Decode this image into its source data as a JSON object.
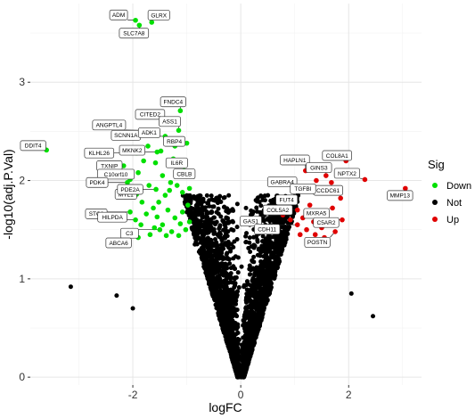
{
  "chart_data": {
    "type": "scatter",
    "xlabel": "logFC",
    "ylabel": "-log10(adj.P.Val)",
    "xlim": [
      -3.9,
      3.35
    ],
    "ylim": [
      -0.08,
      3.8
    ],
    "x_ticks": [
      -2,
      0,
      2
    ],
    "x_tick_labels": [
      "-2",
      "0",
      "2"
    ],
    "y_ticks": [
      0,
      1,
      2,
      3
    ],
    "y_tick_labels": [
      "0",
      "1",
      "2",
      "3"
    ],
    "grid": true,
    "legend": {
      "title": "Sig",
      "position": "right",
      "entries": [
        {
          "label": "Down",
          "color": "#00e000"
        },
        {
          "label": "Not",
          "color": "#000000"
        },
        {
          "label": "Up",
          "color": "#e00000"
        }
      ]
    },
    "series": [
      {
        "name": "Down",
        "color": "#00e000",
        "points": [
          {
            "x": -1.95,
            "y": 3.63,
            "label": "ADM"
          },
          {
            "x": -1.65,
            "y": 3.61,
            "label": "GLRX"
          },
          {
            "x": -1.88,
            "y": 3.58,
            "label": "SLC7A8"
          },
          {
            "x": -1.35,
            "y": 2.6,
            "label": "CITED2"
          },
          {
            "x": -1.12,
            "y": 2.71,
            "label": "FNDC4"
          },
          {
            "x": -1.73,
            "y": 2.51,
            "label": "ANGPTL4"
          },
          {
            "x": -1.15,
            "y": 2.51,
            "label": "ASS1"
          },
          {
            "x": -1.55,
            "y": 2.46,
            "label": "SCNN1A"
          },
          {
            "x": -1.4,
            "y": 2.45,
            "label": "ADK1"
          },
          {
            "x": -1.0,
            "y": 2.38,
            "label": "RBP4"
          },
          {
            "x": -1.93,
            "y": 2.28,
            "label": "KLHL26"
          },
          {
            "x": -1.55,
            "y": 2.29,
            "label": "MKNK2"
          },
          {
            "x": -1.12,
            "y": 2.18,
            "label": "IL6R"
          },
          {
            "x": -3.6,
            "y": 2.31,
            "label": "DDIT4"
          },
          {
            "x": -2.17,
            "y": 2.15,
            "label": "TXNIP"
          },
          {
            "x": -2.05,
            "y": 2.01,
            "label": "C10orf10"
          },
          {
            "x": -0.98,
            "y": 2.05,
            "label": "CBLB"
          },
          {
            "x": -2.1,
            "y": 1.98,
            "label": "PDK4"
          },
          {
            "x": -1.93,
            "y": 1.86,
            "label": "MYL1"
          },
          {
            "x": -1.57,
            "y": 1.91,
            "label": "PDE2A"
          },
          {
            "x": -2.05,
            "y": 1.68,
            "label": "STC2"
          },
          {
            "x": -1.95,
            "y": 1.6,
            "label": "HILPDA"
          },
          {
            "x": -1.5,
            "y": 1.5,
            "label": "C3"
          },
          {
            "x": -1.9,
            "y": 1.42,
            "label": "ABCA6"
          },
          {
            "x": -1.72,
            "y": 2.35
          },
          {
            "x": -1.58,
            "y": 2.18
          },
          {
            "x": -1.45,
            "y": 2.05
          },
          {
            "x": -1.3,
            "y": 1.98
          },
          {
            "x": -1.25,
            "y": 2.22
          },
          {
            "x": -1.18,
            "y": 1.95
          },
          {
            "x": -1.08,
            "y": 1.88
          },
          {
            "x": -0.98,
            "y": 1.75
          },
          {
            "x": -0.95,
            "y": 1.92
          },
          {
            "x": -1.4,
            "y": 1.85
          },
          {
            "x": -1.52,
            "y": 1.78
          },
          {
            "x": -1.62,
            "y": 1.72
          },
          {
            "x": -1.75,
            "y": 1.66
          },
          {
            "x": -1.83,
            "y": 1.78
          },
          {
            "x": -1.7,
            "y": 1.95
          },
          {
            "x": -1.35,
            "y": 1.7
          },
          {
            "x": -1.22,
            "y": 1.62
          },
          {
            "x": -1.12,
            "y": 1.56
          },
          {
            "x": -1.02,
            "y": 1.5
          },
          {
            "x": -0.95,
            "y": 1.58
          },
          {
            "x": -1.28,
            "y": 1.48
          },
          {
            "x": -1.45,
            "y": 1.55
          },
          {
            "x": -1.6,
            "y": 1.52
          },
          {
            "x": -1.85,
            "y": 1.55
          },
          {
            "x": -1.68,
            "y": 1.45
          },
          {
            "x": -1.38,
            "y": 1.44
          },
          {
            "x": -1.15,
            "y": 1.44
          },
          {
            "x": -2.02,
            "y": 1.88
          },
          {
            "x": -1.9,
            "y": 2.08
          },
          {
            "x": -1.8,
            "y": 2.2
          },
          {
            "x": -1.48,
            "y": 2.3
          },
          {
            "x": -1.22,
            "y": 2.35
          },
          {
            "x": -1.05,
            "y": 2.1
          },
          {
            "x": -1.32,
            "y": 1.9
          },
          {
            "x": -1.55,
            "y": 1.63
          },
          {
            "x": -1.08,
            "y": 1.68
          }
        ]
      },
      {
        "name": "Up",
        "color": "#e00000",
        "points": [
          {
            "x": 1.95,
            "y": 2.2,
            "label": "COL8A1"
          },
          {
            "x": 2.3,
            "y": 2.01,
            "label": "NPTX2"
          },
          {
            "x": 3.05,
            "y": 1.92,
            "label": "MMP13"
          },
          {
            "x": 1.2,
            "y": 2.1,
            "label": "HAPLN1"
          },
          {
            "x": 1.58,
            "y": 2.05,
            "label": "GINS3"
          },
          {
            "x": 1.75,
            "y": 1.9,
            "label": "CCDC61"
          },
          {
            "x": 1.0,
            "y": 1.95,
            "label": "GABRA4"
          },
          {
            "x": 1.45,
            "y": 1.88,
            "label": "TGFBI"
          },
          {
            "x": 0.95,
            "y": 1.83,
            "label": "FUT4"
          },
          {
            "x": 1.7,
            "y": 1.72,
            "label": "MXRA5"
          },
          {
            "x": 1.05,
            "y": 1.7,
            "label": "COL5A2"
          },
          {
            "x": 0.78,
            "y": 1.65,
            "label": "GAS1"
          },
          {
            "x": 1.88,
            "y": 1.6,
            "label": "C5AR2"
          },
          {
            "x": 1.05,
            "y": 1.55,
            "label": "CDH11"
          },
          {
            "x": 1.75,
            "y": 1.48,
            "label": "POSTN"
          },
          {
            "x": 1.15,
            "y": 1.62
          },
          {
            "x": 1.28,
            "y": 1.75
          },
          {
            "x": 1.35,
            "y": 1.58
          },
          {
            "x": 1.22,
            "y": 1.5
          },
          {
            "x": 1.38,
            "y": 1.45
          },
          {
            "x": 1.5,
            "y": 1.52
          },
          {
            "x": 1.62,
            "y": 1.6
          },
          {
            "x": 1.55,
            "y": 1.42
          },
          {
            "x": 1.1,
            "y": 1.45
          },
          {
            "x": 1.3,
            "y": 1.9
          },
          {
            "x": 1.48,
            "y": 1.68
          },
          {
            "x": 1.85,
            "y": 1.82
          },
          {
            "x": 1.68,
            "y": 1.98
          },
          {
            "x": 1.4,
            "y": 2.0
          },
          {
            "x": 0.92,
            "y": 1.6
          }
        ]
      },
      {
        "name": "Not",
        "color": "#000000",
        "summary": "several thousand non-significant genes filling a V-shaped cloud from (0, 0) up to about |logFC| 1 at -log10(adj.P.Val) 1.9, plus scattered outliers",
        "points": [
          {
            "x": -3.15,
            "y": 0.92
          },
          {
            "x": -2.3,
            "y": 0.83
          },
          {
            "x": -2.0,
            "y": 0.7
          },
          {
            "x": 2.05,
            "y": 0.85
          },
          {
            "x": 2.45,
            "y": 0.62
          },
          {
            "x": -0.95,
            "y": 1.82
          },
          {
            "x": 0.85,
            "y": 1.72
          },
          {
            "x": -0.85,
            "y": 1.35
          },
          {
            "x": 0.7,
            "y": 1.3
          }
        ]
      }
    ]
  }
}
